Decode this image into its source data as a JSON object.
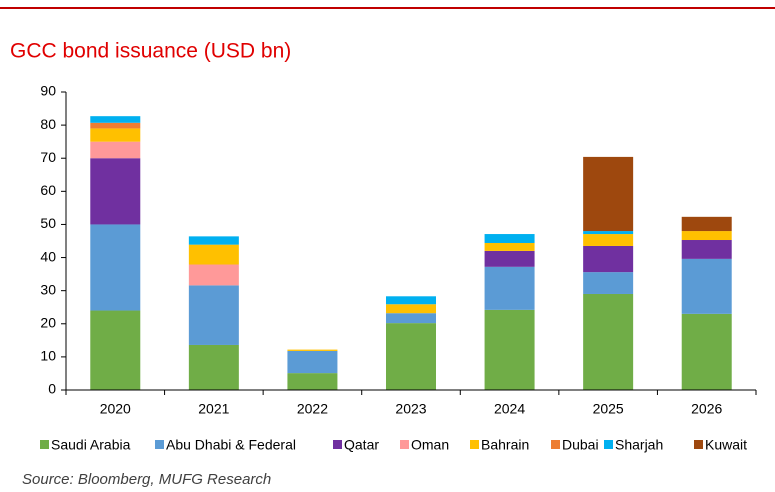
{
  "chart_data": {
    "type": "stacked_bar",
    "title": "GCC bond issuance (USD bn)",
    "source": "Source: Bloomberg, MUFG Research",
    "categories": [
      "2020",
      "2021",
      "2022",
      "2023",
      "2024",
      "2025",
      "2026"
    ],
    "series": [
      {
        "name": "Saudi Arabia",
        "color": "#70ad47",
        "values": [
          24,
          13.6,
          5.1,
          20.2,
          24.2,
          29,
          23
        ]
      },
      {
        "name": "Abu Dhabi & Federal",
        "color": "#5b9bd5",
        "values": [
          26,
          18,
          6.7,
          3,
          13,
          6.6,
          16.6
        ]
      },
      {
        "name": "Qatar",
        "color": "#7030a0",
        "values": [
          20,
          0,
          0,
          0,
          4.8,
          7.9,
          5.7
        ]
      },
      {
        "name": "Oman",
        "color": "#ff9999",
        "values": [
          5,
          6.3,
          0,
          0,
          0,
          0,
          0
        ]
      },
      {
        "name": "Bahrain",
        "color": "#ffc000",
        "values": [
          4,
          6,
          0.4,
          2.7,
          2.4,
          3.6,
          2.7
        ]
      },
      {
        "name": "Dubai",
        "color": "#ed7d31",
        "values": [
          1.7,
          0,
          0,
          0,
          0,
          0,
          0
        ]
      },
      {
        "name": "Sharjah",
        "color": "#00b0f0",
        "values": [
          2,
          2.5,
          0,
          2.4,
          2.7,
          0.9,
          0
        ]
      },
      {
        "name": "Kuwait",
        "color": "#9e480e",
        "values": [
          0,
          0,
          0,
          0,
          0,
          22.4,
          4.3
        ]
      }
    ],
    "ylim": [
      0,
      90
    ],
    "yticks": [
      0,
      10,
      20,
      30,
      40,
      50,
      60,
      70,
      80,
      90
    ]
  }
}
